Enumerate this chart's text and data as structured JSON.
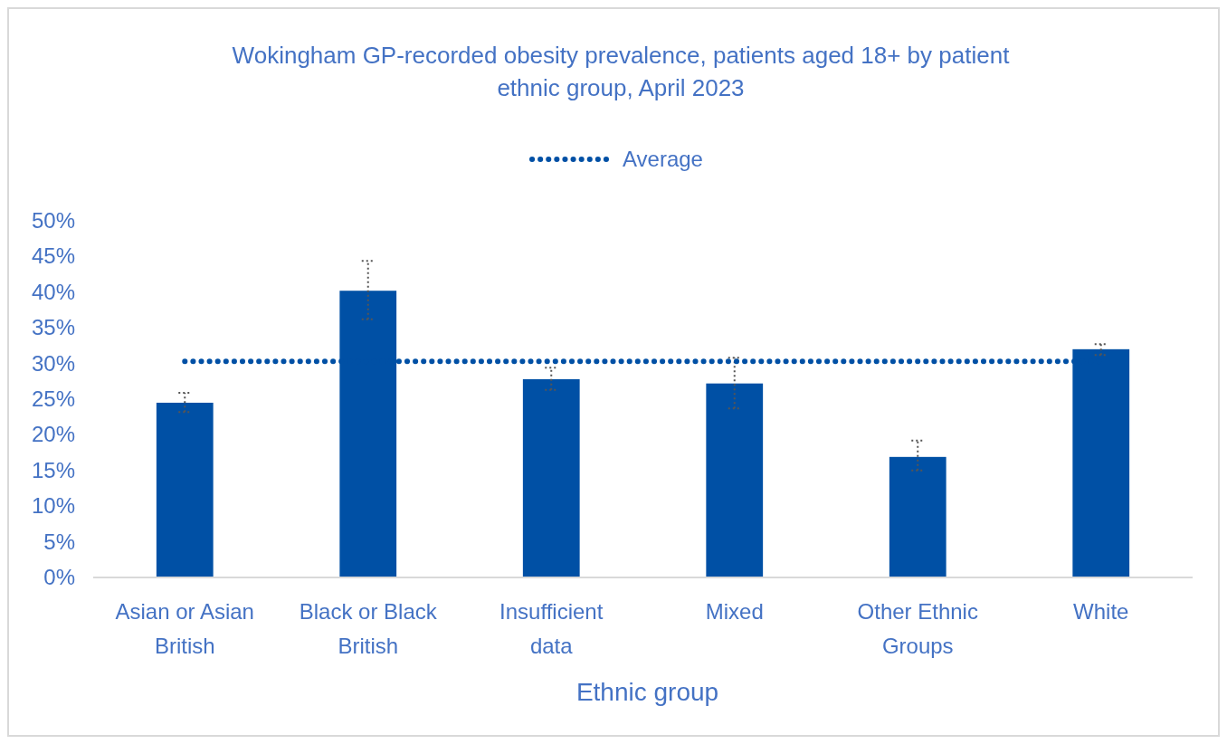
{
  "chart_data": {
    "type": "bar",
    "title": "Wokingham GP-recorded obesity prevalence, patients aged 18+ by patient ethnic group, April 2023",
    "xlabel": "Ethnic group",
    "categories": [
      "Asian or Asian British",
      "Black or Black British",
      "Insufficient data",
      "Mixed",
      "Other Ethnic Groups",
      "White"
    ],
    "series": [
      {
        "color": "#0050a5",
        "values": [
          24.5,
          40.2,
          27.8,
          27.2,
          16.9,
          32.0
        ],
        "errors": [
          [
            23.2,
            25.9
          ],
          [
            36.2,
            44.4
          ],
          [
            26.3,
            29.4
          ],
          [
            23.7,
            30.8
          ],
          [
            15.0,
            19.2
          ],
          [
            31.2,
            32.7
          ]
        ]
      },
      {
        "type": "line",
        "name": "Average",
        "color": "#0050a5",
        "values": [
          30.3,
          30.3,
          30.3,
          30.3,
          30.3,
          30.3
        ],
        "line_style": "dotted",
        "marker": "none"
      }
    ],
    "ylim": [
      0,
      50
    ],
    "yticks": [
      {
        "value": 0,
        "label": "0%"
      },
      {
        "value": 5,
        "label": "5%"
      },
      {
        "value": 10,
        "label": "10%"
      },
      {
        "value": 15,
        "label": "15%"
      },
      {
        "value": 20,
        "label": "20%"
      },
      {
        "value": 25,
        "label": "25%"
      },
      {
        "value": 30,
        "label": "30%"
      },
      {
        "value": 35,
        "label": "35%"
      },
      {
        "value": 40,
        "label": "40%"
      },
      {
        "value": 45,
        "label": "45%"
      },
      {
        "value": 50,
        "label": "50%"
      }
    ],
    "grid": false,
    "legend": "top"
  }
}
